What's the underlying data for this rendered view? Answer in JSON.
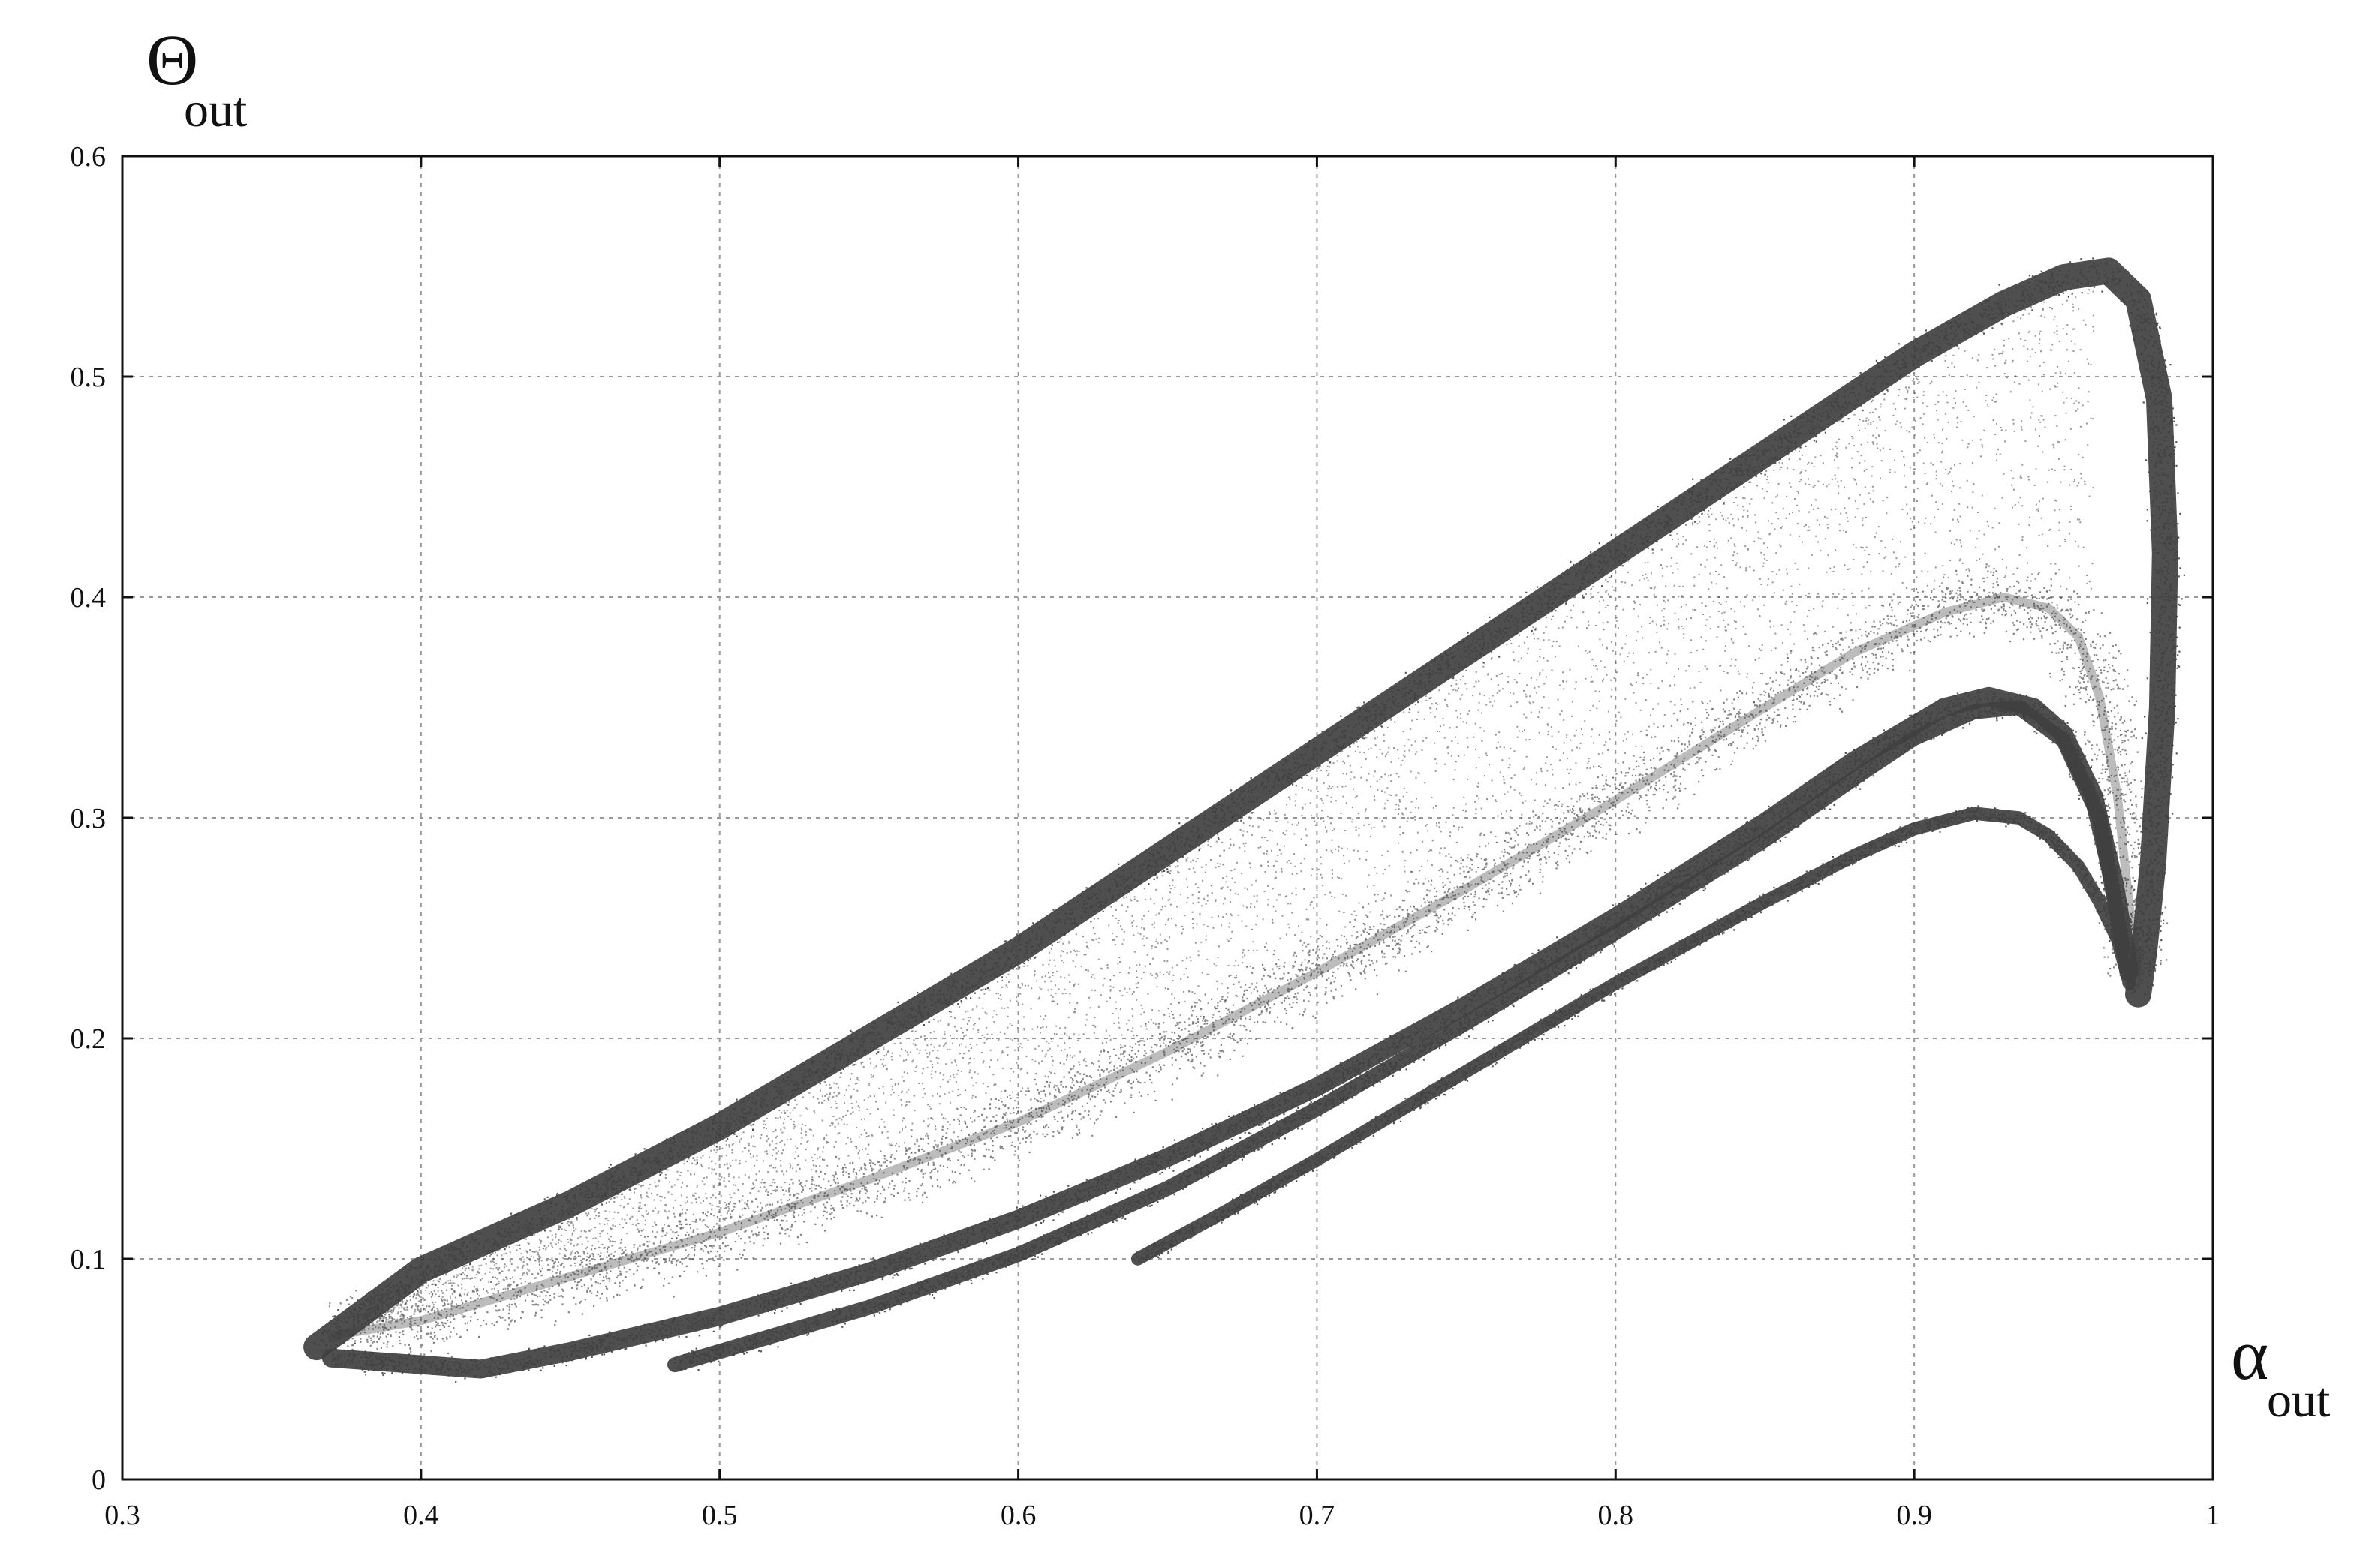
{
  "chart_data": {
    "type": "scatter",
    "title": "",
    "xlabel": "α",
    "xlabel_sub": "out",
    "ylabel": "Θ",
    "ylabel_sub": "out",
    "xlim": [
      0.3,
      1.0
    ],
    "ylim": [
      0.0,
      0.6
    ],
    "x_ticks": [
      0.3,
      0.4,
      0.5,
      0.6,
      0.7,
      0.8,
      0.9,
      1.0
    ],
    "x_tick_labels": [
      "0.3",
      "0.4",
      "0.5",
      "0.6",
      "0.7",
      "0.8",
      "0.9",
      "1"
    ],
    "y_ticks": [
      0.0,
      0.1,
      0.2,
      0.3,
      0.4,
      0.5,
      0.6
    ],
    "y_tick_labels": [
      "0",
      "0.1",
      "0.2",
      "0.3",
      "0.4",
      "0.5",
      "0.6"
    ],
    "grid": true,
    "legend": "none",
    "point_color": "#404040",
    "series": [
      {
        "density": "dense",
        "band_width": 0.014,
        "x": [
          0.365,
          0.38,
          0.4,
          0.45,
          0.5,
          0.55,
          0.6,
          0.65,
          0.7,
          0.75,
          0.8,
          0.85,
          0.9,
          0.93,
          0.95,
          0.965,
          0.975,
          0.982,
          0.984,
          0.983,
          0.98,
          0.977,
          0.975
        ],
        "y": [
          0.06,
          0.075,
          0.095,
          0.125,
          0.16,
          0.2,
          0.24,
          0.285,
          0.33,
          0.375,
          0.42,
          0.465,
          0.51,
          0.533,
          0.545,
          0.548,
          0.535,
          0.49,
          0.42,
          0.35,
          0.28,
          0.24,
          0.22
        ]
      },
      {
        "density": "sparse",
        "band_width": 0.016,
        "x": [
          0.37,
          0.4,
          0.45,
          0.5,
          0.55,
          0.6,
          0.65,
          0.7,
          0.75,
          0.8,
          0.85,
          0.88,
          0.91,
          0.93,
          0.945,
          0.955,
          0.962,
          0.968,
          0.972,
          0.975
        ],
        "y": [
          0.065,
          0.072,
          0.092,
          0.112,
          0.136,
          0.162,
          0.194,
          0.23,
          0.268,
          0.308,
          0.35,
          0.375,
          0.393,
          0.4,
          0.395,
          0.382,
          0.355,
          0.31,
          0.26,
          0.23
        ]
      },
      {
        "density": "dense",
        "band_width": 0.01,
        "x": [
          0.37,
          0.4,
          0.42,
          0.45,
          0.5,
          0.55,
          0.6,
          0.65,
          0.7,
          0.75,
          0.8,
          0.85,
          0.88,
          0.91,
          0.925,
          0.94,
          0.95,
          0.96,
          0.967,
          0.972
        ],
        "y": [
          0.055,
          0.052,
          0.05,
          0.058,
          0.074,
          0.094,
          0.118,
          0.146,
          0.178,
          0.215,
          0.255,
          0.298,
          0.326,
          0.35,
          0.355,
          0.35,
          0.338,
          0.31,
          0.27,
          0.23
        ]
      },
      {
        "density": "dense",
        "band_width": 0.008,
        "x": [
          0.485,
          0.5,
          0.55,
          0.6,
          0.65,
          0.7,
          0.75,
          0.8,
          0.85,
          0.88,
          0.9,
          0.92,
          0.935,
          0.95,
          0.962,
          0.97
        ],
        "y": [
          0.052,
          0.058,
          0.078,
          0.102,
          0.132,
          0.168,
          0.207,
          0.248,
          0.29,
          0.318,
          0.336,
          0.348,
          0.35,
          0.335,
          0.3,
          0.24
        ]
      },
      {
        "density": "dense",
        "band_width": 0.007,
        "x": [
          0.64,
          0.67,
          0.7,
          0.75,
          0.8,
          0.85,
          0.88,
          0.9,
          0.92,
          0.935,
          0.945,
          0.955,
          0.962,
          0.968,
          0.972
        ],
        "y": [
          0.1,
          0.122,
          0.145,
          0.185,
          0.225,
          0.262,
          0.283,
          0.295,
          0.302,
          0.3,
          0.292,
          0.278,
          0.262,
          0.245,
          0.225
        ]
      }
    ]
  }
}
